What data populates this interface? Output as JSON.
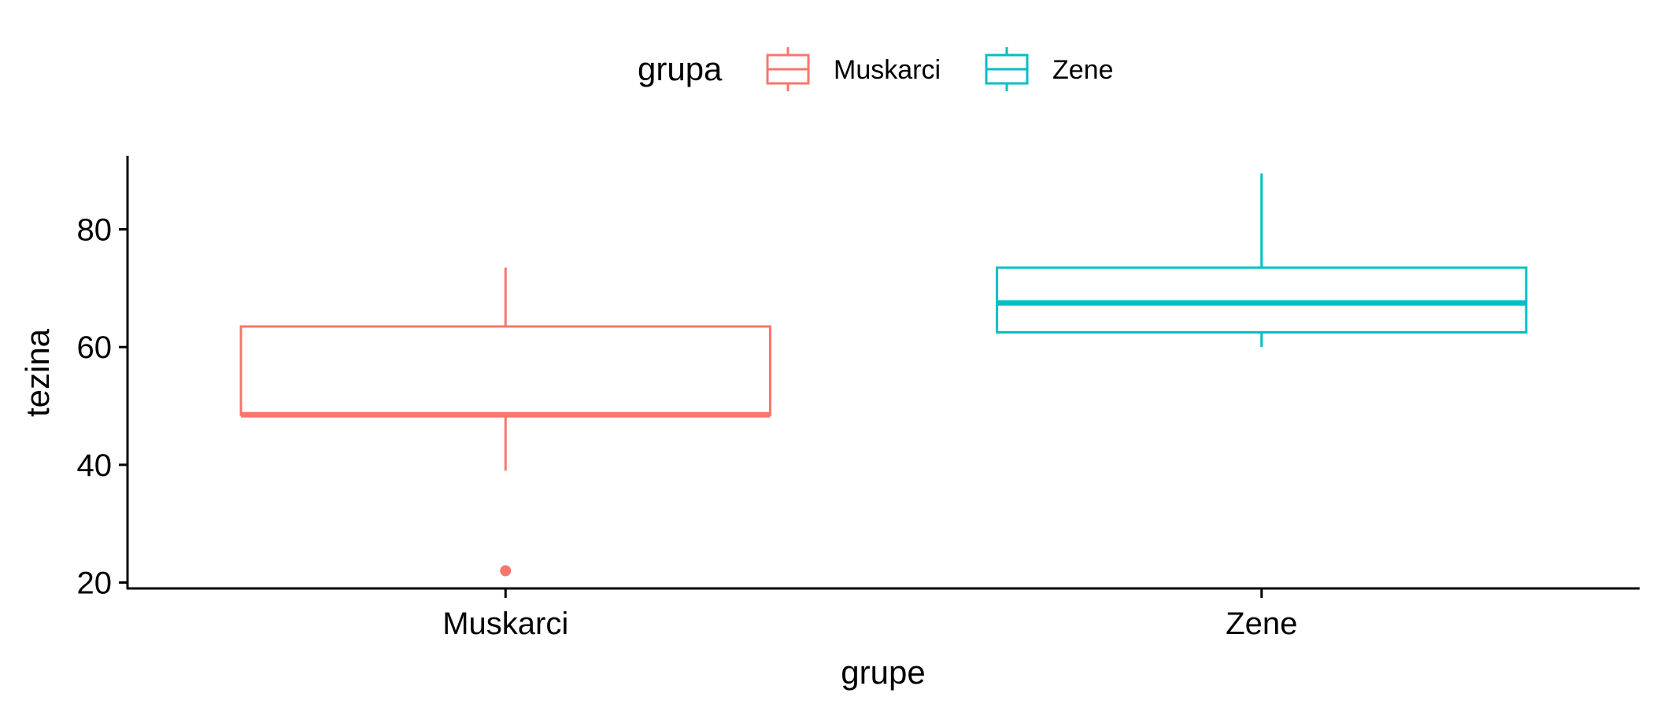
{
  "chart_data": {
    "type": "boxplot",
    "xlabel": "grupe",
    "ylabel": "tezina",
    "ylim": [
      19,
      92.5
    ],
    "yticks": [
      20,
      40,
      60,
      80
    ],
    "categories": [
      "Muskarci",
      "Zene"
    ],
    "grid": false,
    "legend": {
      "title": "grupa",
      "position": "top",
      "entries": [
        "Muskarci",
        "Zene"
      ]
    },
    "series": [
      {
        "category": "Muskarci",
        "color": "#F8766D",
        "whisker_low": 39,
        "q1": 48.5,
        "median": 48.5,
        "q3": 63.5,
        "whisker_high": 73.5,
        "outliers": [
          22
        ]
      },
      {
        "category": "Zene",
        "color": "#00BFC4",
        "whisker_low": 60,
        "q1": 62.5,
        "median": 67.5,
        "q3": 73.5,
        "whisker_high": 89.5,
        "outliers": []
      }
    ]
  }
}
